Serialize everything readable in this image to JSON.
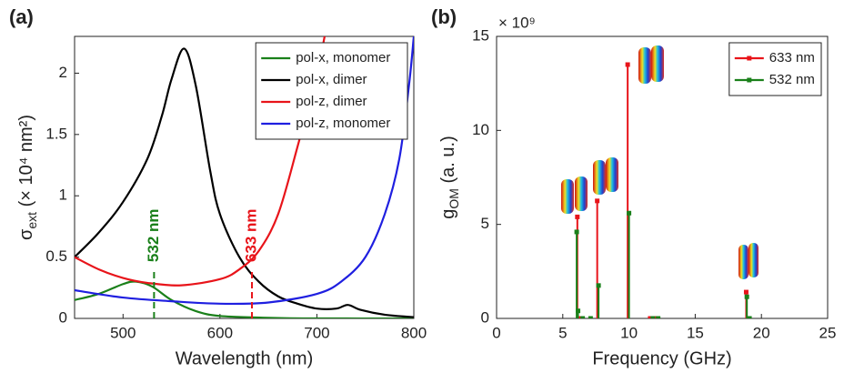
{
  "chart_data": [
    {
      "type": "line",
      "panel_label": "(a)",
      "xlabel": "Wavelength (nm)",
      "ylabel": {
        "symbol": "σ",
        "subscript": "ext",
        "unit": " (× 10⁴ nm²)"
      },
      "xlim": [
        450,
        800
      ],
      "xticks": [
        500,
        600,
        700,
        800
      ],
      "ylim": [
        0,
        2.3
      ],
      "yticks": [
        0,
        0.5,
        1,
        1.5,
        2
      ],
      "legend": "upper right",
      "series": [
        {
          "name": "pol-x, monomer",
          "color": "#1a801a",
          "x": [
            450,
            475,
            500,
            513,
            530,
            550,
            575,
            600,
            650,
            700,
            800
          ],
          "values": [
            0.15,
            0.2,
            0.28,
            0.3,
            0.26,
            0.15,
            0.06,
            0.02,
            0.005,
            0,
            0
          ]
        },
        {
          "name": "pol-x, dimer",
          "color": "#000000",
          "x": [
            450,
            475,
            500,
            525,
            540,
            550,
            563,
            575,
            590,
            600,
            620,
            640,
            660,
            680,
            700,
            720,
            732,
            745,
            770,
            800
          ],
          "values": [
            0.5,
            0.7,
            0.95,
            1.3,
            1.65,
            1.95,
            2.2,
            1.9,
            1.2,
            0.85,
            0.5,
            0.3,
            0.18,
            0.12,
            0.08,
            0.08,
            0.11,
            0.07,
            0.03,
            0.01
          ]
        },
        {
          "name": "pol-z, dimer",
          "color": "#e8141a",
          "x": [
            450,
            475,
            500,
            525,
            560,
            600,
            620,
            640,
            660,
            680,
            700,
            708
          ],
          "values": [
            0.5,
            0.4,
            0.33,
            0.29,
            0.27,
            0.32,
            0.4,
            0.55,
            0.85,
            1.4,
            2.0,
            2.3
          ]
        },
        {
          "name": "pol-z, monomer",
          "color": "#1f1fe0",
          "x": [
            450,
            500,
            550,
            600,
            650,
            700,
            725,
            750,
            770,
            785,
            795,
            800
          ],
          "values": [
            0.23,
            0.17,
            0.14,
            0.12,
            0.13,
            0.2,
            0.3,
            0.5,
            0.85,
            1.3,
            1.9,
            2.3
          ]
        }
      ],
      "annotations": [
        {
          "text": "532 nm",
          "x": 532,
          "y": 0.4,
          "color": "#1a801a"
        },
        {
          "text": "633 nm",
          "x": 633,
          "y": 0.4,
          "color": "#e8141a"
        }
      ]
    },
    {
      "type": "stem",
      "panel_label": "(b)",
      "xlabel": "Frequency (GHz)",
      "ylabel": {
        "symbol": "g",
        "subscript": "OM",
        "unit": " (a. u.)"
      },
      "y_multiplier": "× 10⁹",
      "xlim": [
        0,
        25
      ],
      "xticks": [
        0,
        5,
        10,
        15,
        20,
        25
      ],
      "ylim": [
        0,
        15
      ],
      "yticks": [
        0,
        5,
        10,
        15
      ],
      "legend": "upper right",
      "series": [
        {
          "name": "633 nm",
          "color": "#e8141a",
          "x": [
            6.1,
            6.3,
            7.6,
            9.9,
            11.6,
            12.0,
            18.85
          ],
          "values": [
            5.4,
            0,
            6.25,
            13.5,
            0,
            0,
            1.4
          ]
        },
        {
          "name": "532 nm",
          "color": "#1a801a",
          "x": [
            6.05,
            6.15,
            6.5,
            7.1,
            7.7,
            10.0,
            11.8,
            12.2,
            18.9,
            19.1
          ],
          "values": [
            4.6,
            0.4,
            0,
            0,
            1.75,
            5.6,
            0,
            0,
            1.15,
            0
          ]
        }
      ]
    }
  ]
}
